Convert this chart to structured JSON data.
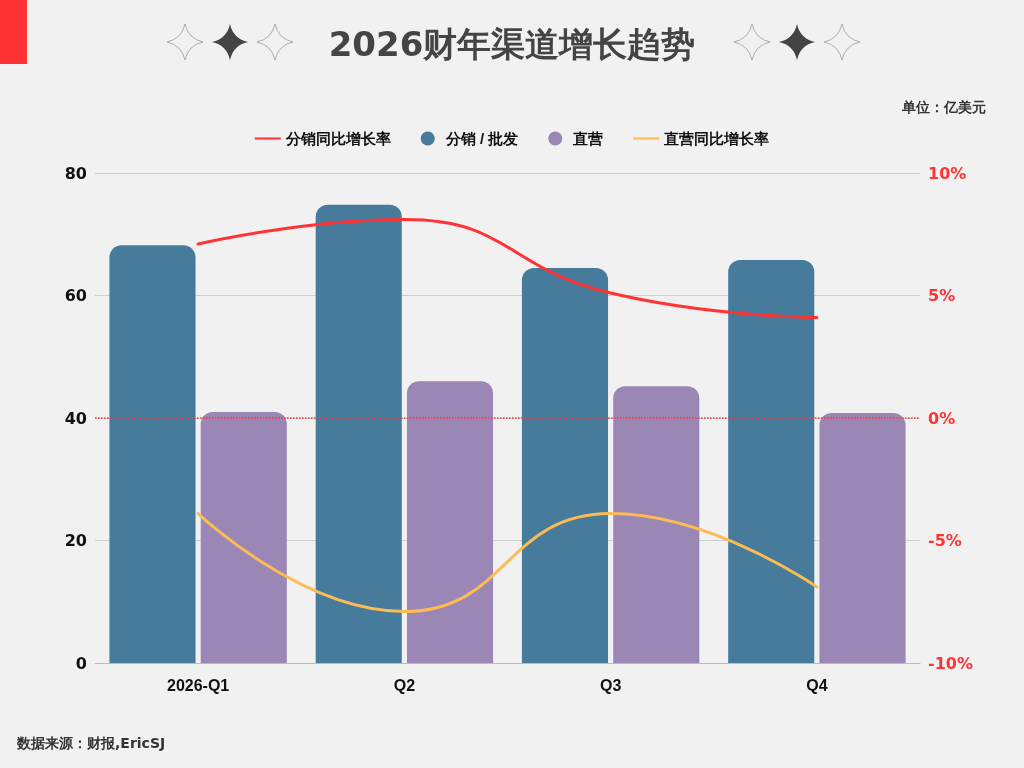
{
  "chart_data": {
    "type": "bar",
    "title": "2026财年渠道增长趋势",
    "categories": [
      "2026-Q1",
      "Q2",
      "Q3",
      "Q4"
    ],
    "series": [
      {
        "name": "分销同比增长率",
        "type": "line",
        "axis": "y2",
        "color": "#ff3333",
        "values": [
          7.1,
          8.1,
          5.1,
          4.1
        ]
      },
      {
        "name": "分销 / 批发",
        "color": "#467b9c",
        "values": [
          68.2,
          74.8,
          64.5,
          65.8
        ]
      },
      {
        "name": "直营",
        "color": "#9a87b5",
        "values": [
          41.0,
          46.0,
          45.2,
          40.8
        ]
      },
      {
        "name": "直营同比增长率",
        "type": "line",
        "axis": "y2",
        "color": "#fdbb55",
        "values": [
          -3.9,
          -7.9,
          -3.9,
          -6.9
        ]
      }
    ],
    "ylim": [
      0,
      80
    ],
    "yticks": [
      0,
      20,
      40,
      60,
      80
    ],
    "y2lim": [
      -10,
      10
    ],
    "y2ticks": [
      {
        "value": -10,
        "label": "-10%"
      },
      {
        "value": -5,
        "label": "-5%"
      },
      {
        "value": 0,
        "label": "0%"
      },
      {
        "value": 5,
        "label": "5%"
      },
      {
        "value": 10,
        "label": "10%"
      }
    ],
    "ref_lines": [
      {
        "axis": "y2",
        "value": 0,
        "color": "#ff3333",
        "line_style": "dotted"
      }
    ],
    "grid": "y",
    "legend": "top",
    "marker": "none",
    "line_style": "solid",
    "annotations": [
      "单位：亿美元",
      "数据来源：财报,EricSJ"
    ]
  }
}
